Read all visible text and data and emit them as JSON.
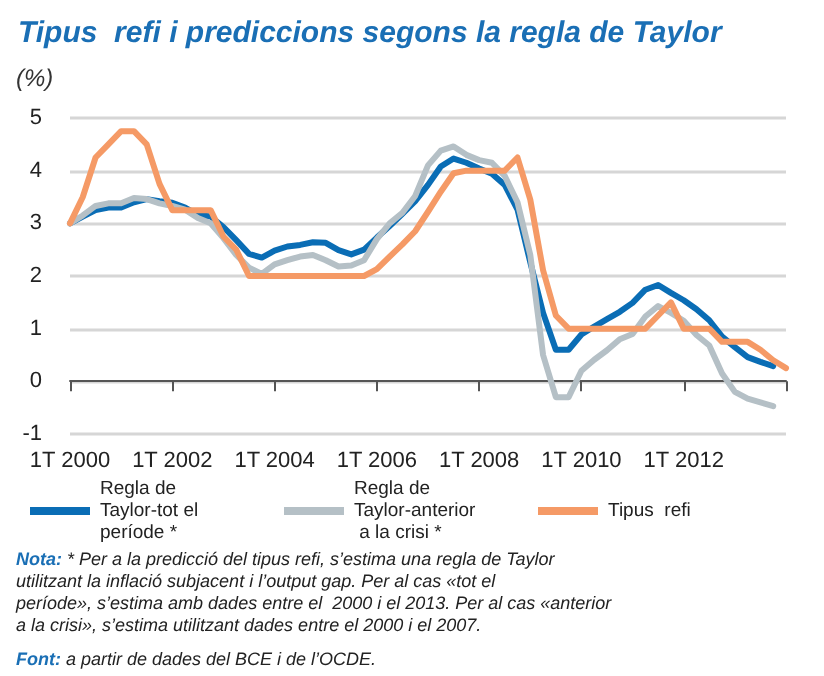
{
  "chart_data": {
    "type": "line",
    "title": "Tipus  refi i prediccions segons la regla de Taylor",
    "ylabel": "(%)",
    "categories": [
      "1T 2000",
      null,
      null,
      null,
      null,
      null,
      null,
      null,
      "1T 2002",
      null,
      null,
      null,
      null,
      null,
      null,
      null,
      "1T 2004",
      null,
      null,
      null,
      null,
      null,
      null,
      null,
      "1T 2006",
      null,
      null,
      null,
      null,
      null,
      null,
      null,
      "1T 2008",
      null,
      null,
      null,
      null,
      null,
      null,
      null,
      "1T 2010",
      null,
      null,
      null,
      null,
      null,
      null,
      null,
      "1T 2012",
      null,
      null,
      null,
      null,
      null,
      null,
      null,
      null
    ],
    "ylim": [
      -1,
      5
    ],
    "yticks": [
      -1,
      0,
      1,
      2,
      3,
      4,
      5
    ],
    "grid": "y",
    "legend": "bottom",
    "marker": "none",
    "line_style": "solid",
    "series": [
      {
        "name": "Regla de Taylor-tot el període *",
        "color": "#0a6db5",
        "values": [
          3.0,
          3.13,
          3.25,
          3.3,
          3.3,
          3.4,
          3.46,
          3.42,
          3.39,
          3.3,
          3.16,
          3.13,
          2.93,
          2.68,
          2.42,
          2.35,
          2.48,
          2.56,
          2.59,
          2.64,
          2.63,
          2.49,
          2.41,
          2.5,
          2.73,
          2.95,
          3.18,
          3.42,
          3.73,
          4.08,
          4.23,
          4.15,
          4.04,
          3.94,
          3.73,
          3.26,
          2.26,
          1.3,
          0.6,
          0.6,
          0.89,
          1.04,
          1.18,
          1.32,
          1.49,
          1.74,
          1.83,
          1.68,
          1.54,
          1.37,
          1.16,
          0.85,
          0.65,
          0.46,
          0.37,
          0.29,
          null
        ]
      },
      {
        "name": "Regla de Taylor-anterior a la crisi *",
        "color": "#b5c0c6",
        "values": [
          3.0,
          3.15,
          3.33,
          3.38,
          3.38,
          3.48,
          3.46,
          3.38,
          3.33,
          3.26,
          3.1,
          3.0,
          2.72,
          2.4,
          2.16,
          2.04,
          2.22,
          2.3,
          2.37,
          2.4,
          2.3,
          2.18,
          2.2,
          2.3,
          2.7,
          3.0,
          3.2,
          3.52,
          4.1,
          4.38,
          4.46,
          4.3,
          4.2,
          4.15,
          3.9,
          3.4,
          2.4,
          0.5,
          -0.3,
          -0.3,
          0.2,
          0.41,
          0.59,
          0.8,
          0.9,
          1.23,
          1.43,
          1.3,
          1.15,
          0.88,
          0.68,
          0.15,
          -0.2,
          -0.33,
          -0.4,
          -0.47,
          null
        ]
      },
      {
        "name": "Tipus  refi",
        "color": "#f59a66",
        "values": [
          3.0,
          3.5,
          4.25,
          4.5,
          4.75,
          4.75,
          4.5,
          3.75,
          3.25,
          3.25,
          3.25,
          3.25,
          2.75,
          2.5,
          2.0,
          2.0,
          2.0,
          2.0,
          2.0,
          2.0,
          2.0,
          2.0,
          2.0,
          2.0,
          2.13,
          2.37,
          2.6,
          2.85,
          3.22,
          3.6,
          3.95,
          4.0,
          4.0,
          4.0,
          4.0,
          4.25,
          3.45,
          2.11,
          1.25,
          1.0,
          1.0,
          1.0,
          1.0,
          1.0,
          1.0,
          1.0,
          1.25,
          1.5,
          1.0,
          1.0,
          1.0,
          0.75,
          0.75,
          0.75,
          0.6,
          0.4,
          0.25
        ]
      }
    ],
    "annotations": [
      "Nota: * Per a la predicció del tipus refi, s’estima una regla de Taylor utilitzant la inflació subjacent i l’output gap. Per al cas «tot el període», s’estima amb dades entre el  2000 i el 2013. Per al cas «anterior a la crisi», s’estima utilitzant dades entre el 2000 i el 2007.",
      "Font: a partir de dades del BCE i de l’OCDE."
    ]
  }
}
